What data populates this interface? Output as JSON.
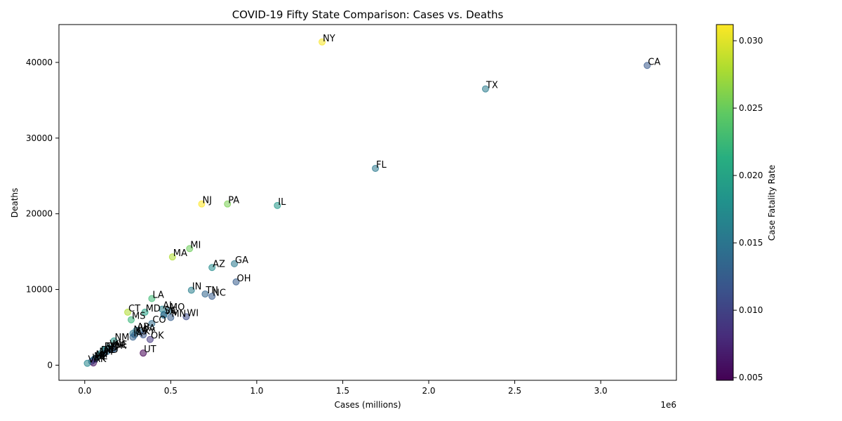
{
  "chart_data": {
    "type": "scatter",
    "title": "COVID-19 Fifty State Comparison: Cases vs. Deaths",
    "xlabel": "Cases (millions)",
    "ylabel": "Deaths",
    "x_offset_label": "1e6",
    "xlim": [
      -150000,
      3440000
    ],
    "ylim": [
      -2000,
      45000
    ],
    "x_ticks": [
      {
        "value": 0,
        "label": "0.0"
      },
      {
        "value": 500000,
        "label": "0.5"
      },
      {
        "value": 1000000,
        "label": "1.0"
      },
      {
        "value": 1500000,
        "label": "1.5"
      },
      {
        "value": 2000000,
        "label": "2.0"
      },
      {
        "value": 2500000,
        "label": "2.5"
      },
      {
        "value": 3000000,
        "label": "3.0"
      }
    ],
    "y_ticks": [
      {
        "value": 0,
        "label": "0"
      },
      {
        "value": 10000,
        "label": "10000"
      },
      {
        "value": 20000,
        "label": "20000"
      },
      {
        "value": 30000,
        "label": "30000"
      },
      {
        "value": 40000,
        "label": "40000"
      }
    ],
    "colorbar": {
      "label": "Case Fatality Rate",
      "range": [
        0.0048,
        0.0312
      ],
      "ticks": [
        {
          "value": 0.005,
          "label": "0.005"
        },
        {
          "value": 0.01,
          "label": "0.010"
        },
        {
          "value": 0.015,
          "label": "0.015"
        },
        {
          "value": 0.02,
          "label": "0.020"
        },
        {
          "value": 0.025,
          "label": "0.025"
        },
        {
          "value": 0.03,
          "label": "0.030"
        }
      ]
    },
    "points": [
      {
        "state": "NY",
        "cases": 1380000,
        "deaths": 42700,
        "cfr": 0.031
      },
      {
        "state": "CA",
        "cases": 3270000,
        "deaths": 39600,
        "cfr": 0.0121
      },
      {
        "state": "TX",
        "cases": 2330000,
        "deaths": 36500,
        "cfr": 0.0157
      },
      {
        "state": "FL",
        "cases": 1690000,
        "deaths": 26000,
        "cfr": 0.0154
      },
      {
        "state": "NJ",
        "cases": 680000,
        "deaths": 21300,
        "cfr": 0.0313
      },
      {
        "state": "PA",
        "cases": 830000,
        "deaths": 21300,
        "cfr": 0.0257
      },
      {
        "state": "IL",
        "cases": 1120000,
        "deaths": 21100,
        "cfr": 0.0188
      },
      {
        "state": "MI",
        "cases": 610000,
        "deaths": 15400,
        "cfr": 0.0252
      },
      {
        "state": "MA",
        "cases": 510000,
        "deaths": 14300,
        "cfr": 0.028
      },
      {
        "state": "GA",
        "cases": 870000,
        "deaths": 13400,
        "cfr": 0.0154
      },
      {
        "state": "AZ",
        "cases": 740000,
        "deaths": 12900,
        "cfr": 0.0174
      },
      {
        "state": "OH",
        "cases": 880000,
        "deaths": 11000,
        "cfr": 0.0125
      },
      {
        "state": "IN",
        "cases": 620000,
        "deaths": 9900,
        "cfr": 0.016
      },
      {
        "state": "TN",
        "cases": 700000,
        "deaths": 9400,
        "cfr": 0.0134
      },
      {
        "state": "NC",
        "cases": 740000,
        "deaths": 9100,
        "cfr": 0.0123
      },
      {
        "state": "LA",
        "cases": 390000,
        "deaths": 8800,
        "cfr": 0.0226
      },
      {
        "state": "AL",
        "cases": 450000,
        "deaths": 7400,
        "cfr": 0.0164
      },
      {
        "state": "MO",
        "cases": 490000,
        "deaths": 7200,
        "cfr": 0.0147
      },
      {
        "state": "CT",
        "cases": 250000,
        "deaths": 7000,
        "cfr": 0.028
      },
      {
        "state": "MD",
        "cases": 350000,
        "deaths": 7000,
        "cfr": 0.02
      },
      {
        "state": "SC",
        "cases": 460000,
        "deaths": 6700,
        "cfr": 0.0146
      },
      {
        "state": "VA",
        "cases": 460000,
        "deaths": 6600,
        "cfr": 0.0143
      },
      {
        "state": "MN",
        "cases": 500000,
        "deaths": 6300,
        "cfr": 0.0126
      },
      {
        "state": "WI",
        "cases": 590000,
        "deaths": 6400,
        "cfr": 0.0108
      },
      {
        "state": "MS",
        "cases": 270000,
        "deaths": 6000,
        "cfr": 0.0222
      },
      {
        "state": "CO",
        "cases": 390000,
        "deaths": 5500,
        "cfr": 0.0141
      },
      {
        "state": "AR",
        "cases": 300000,
        "deaths": 4600,
        "cfr": 0.0153
      },
      {
        "state": "WA",
        "cases": 320000,
        "deaths": 4400,
        "cfr": 0.0138
      },
      {
        "state": "NV",
        "cases": 280000,
        "deaths": 4200,
        "cfr": 0.015
      },
      {
        "state": "KS",
        "cases": 290000,
        "deaths": 4000,
        "cfr": 0.0138
      },
      {
        "state": "KY",
        "cases": 340000,
        "deaths": 4000,
        "cfr": 0.0118
      },
      {
        "state": "IA",
        "cases": 280000,
        "deaths": 3700,
        "cfr": 0.0132
      },
      {
        "state": "OK",
        "cases": 380000,
        "deaths": 3400,
        "cfr": 0.0089
      },
      {
        "state": "NM",
        "cases": 170000,
        "deaths": 3200,
        "cfr": 0.0188
      },
      {
        "state": "UT",
        "cases": 340000,
        "deaths": 1600,
        "cfr": 0.0047
      },
      {
        "state": "RI",
        "cases": 110000,
        "deaths": 2000,
        "cfr": 0.018
      },
      {
        "state": "SD",
        "cases": 120000,
        "deaths": 2000,
        "cfr": 0.0163
      },
      {
        "state": "WV",
        "cases": 140000,
        "deaths": 2300,
        "cfr": 0.0164
      },
      {
        "state": "ND",
        "cases": 110000,
        "deaths": 1500,
        "cfr": 0.0136
      },
      {
        "state": "NE",
        "cases": 170000,
        "deaths": 2200,
        "cfr": 0.0129
      },
      {
        "state": "ID",
        "cases": 130000,
        "deaths": 1800,
        "cfr": 0.0138
      },
      {
        "state": "NH",
        "cases": 80000,
        "deaths": 1300,
        "cfr": 0.0163
      },
      {
        "state": "DE",
        "cases": 90000,
        "deaths": 1500,
        "cfr": 0.0167
      },
      {
        "state": "OR",
        "cases": 160000,
        "deaths": 2100,
        "cfr": 0.0131
      },
      {
        "state": "ME",
        "cases": 50000,
        "deaths": 700,
        "cfr": 0.014
      },
      {
        "state": "MT",
        "cases": 60000,
        "deaths": 900,
        "cfr": 0.015
      },
      {
        "state": "HI",
        "cases": 60000,
        "deaths": 800,
        "cfr": 0.0133
      },
      {
        "state": "WY",
        "cases": 40000,
        "deaths": 500,
        "cfr": 0.0125
      },
      {
        "state": "AK",
        "cases": 50000,
        "deaths": 300,
        "cfr": 0.006
      },
      {
        "state": "VT",
        "cases": 15000,
        "deaths": 250,
        "cfr": 0.0167
      }
    ]
  }
}
